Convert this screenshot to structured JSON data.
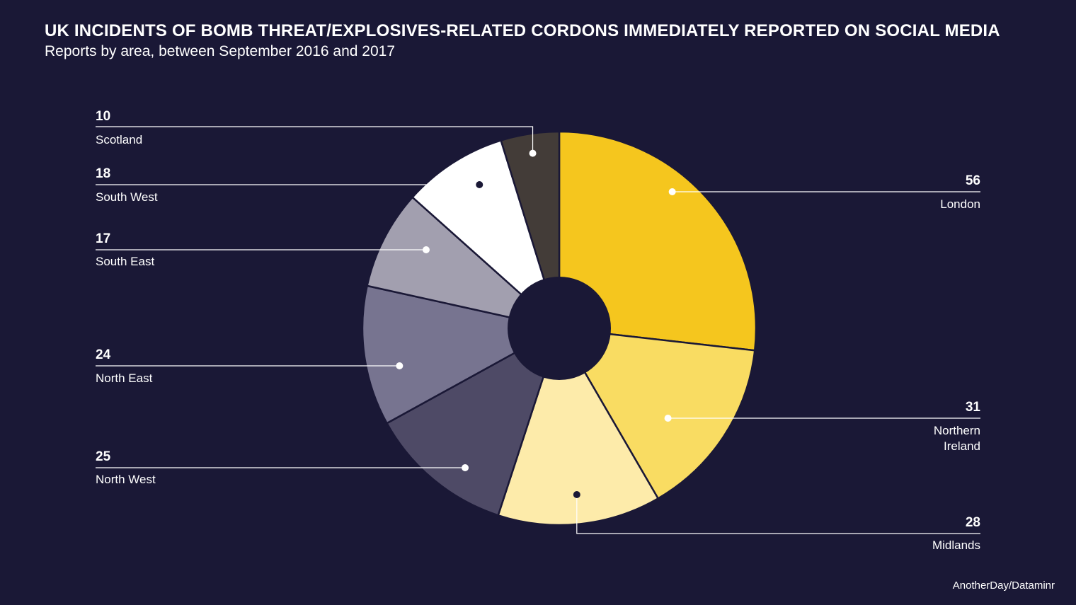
{
  "title": "UK INCIDENTS OF BOMB THREAT/EXPLOSIVES-RELATED CORDONS IMMEDIATELY REPORTED ON SOCIAL MEDIA",
  "subtitle": "Reports by area, between September 2016 and 2017",
  "source": "AnotherDay/Dataminr",
  "chart_data": {
    "type": "pie",
    "title": "UK INCIDENTS OF BOMB THREAT/EXPLOSIVES-RELATED CORDONS IMMEDIATELY REPORTED ON SOCIAL MEDIA",
    "subtitle": "Reports by area, between September 2016 and 2017",
    "categories": [
      "London",
      "Northern Ireland",
      "Midlands",
      "North West",
      "North East",
      "South East",
      "South West",
      "Scotland"
    ],
    "values": [
      56,
      31,
      28,
      25,
      24,
      17,
      18,
      10
    ],
    "colors": [
      "#f5c61e",
      "#f9dc62",
      "#fdebaa",
      "#4e4a66",
      "#777490",
      "#a29faf",
      "#ffffff",
      "#433c38"
    ],
    "legend": "labels beside slices"
  }
}
